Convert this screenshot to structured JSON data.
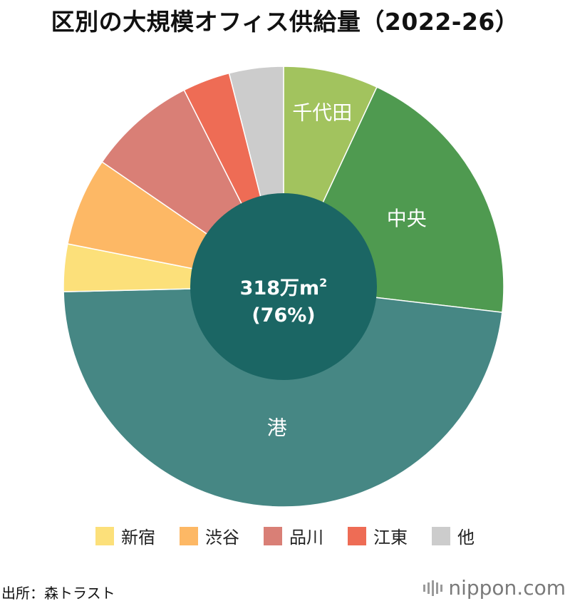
{
  "title": "区別の大規模オフィス供給量（2022-26）",
  "chart_data": {
    "type": "pie",
    "title": "区別の大規模オフィス供給量（2022-26）",
    "slices": [
      {
        "label": "千代田",
        "value": 7,
        "color": "#a2c35e",
        "show_label": true
      },
      {
        "label": "中央",
        "value": 20,
        "color": "#4f9a50",
        "show_label": true
      },
      {
        "label": "港",
        "value": 48,
        "color": "#468784",
        "show_label": true
      },
      {
        "label": "新宿",
        "value": 3.5,
        "color": "#fce07a",
        "show_label": false
      },
      {
        "label": "渋谷",
        "value": 6.5,
        "color": "#fdb865",
        "show_label": false
      },
      {
        "label": "品川",
        "value": 8,
        "color": "#d97f76",
        "show_label": false
      },
      {
        "label": "江東",
        "value": 3.5,
        "color": "#ee6c55",
        "show_label": false
      },
      {
        "label": "他",
        "value": 4,
        "color": "#cccccc",
        "show_label": false
      }
    ],
    "center": {
      "value_label": "318万m",
      "superscript": "2",
      "percent_label": "(76%)",
      "color": "#1b6664",
      "share": 0.76
    },
    "legend": {
      "placement": "bottom",
      "items": [
        "新宿",
        "渋谷",
        "品川",
        "江東",
        "他"
      ]
    }
  },
  "legend_items": [
    {
      "label": "新宿",
      "color": "#fce07a"
    },
    {
      "label": "渋谷",
      "color": "#fdb865"
    },
    {
      "label": "品川",
      "color": "#d97f76"
    },
    {
      "label": "江東",
      "color": "#ee6c55"
    },
    {
      "label": "他",
      "color": "#cccccc"
    }
  ],
  "source": "出所：森トラスト",
  "brand": {
    "name": "nippon",
    "suffix": ".com"
  }
}
